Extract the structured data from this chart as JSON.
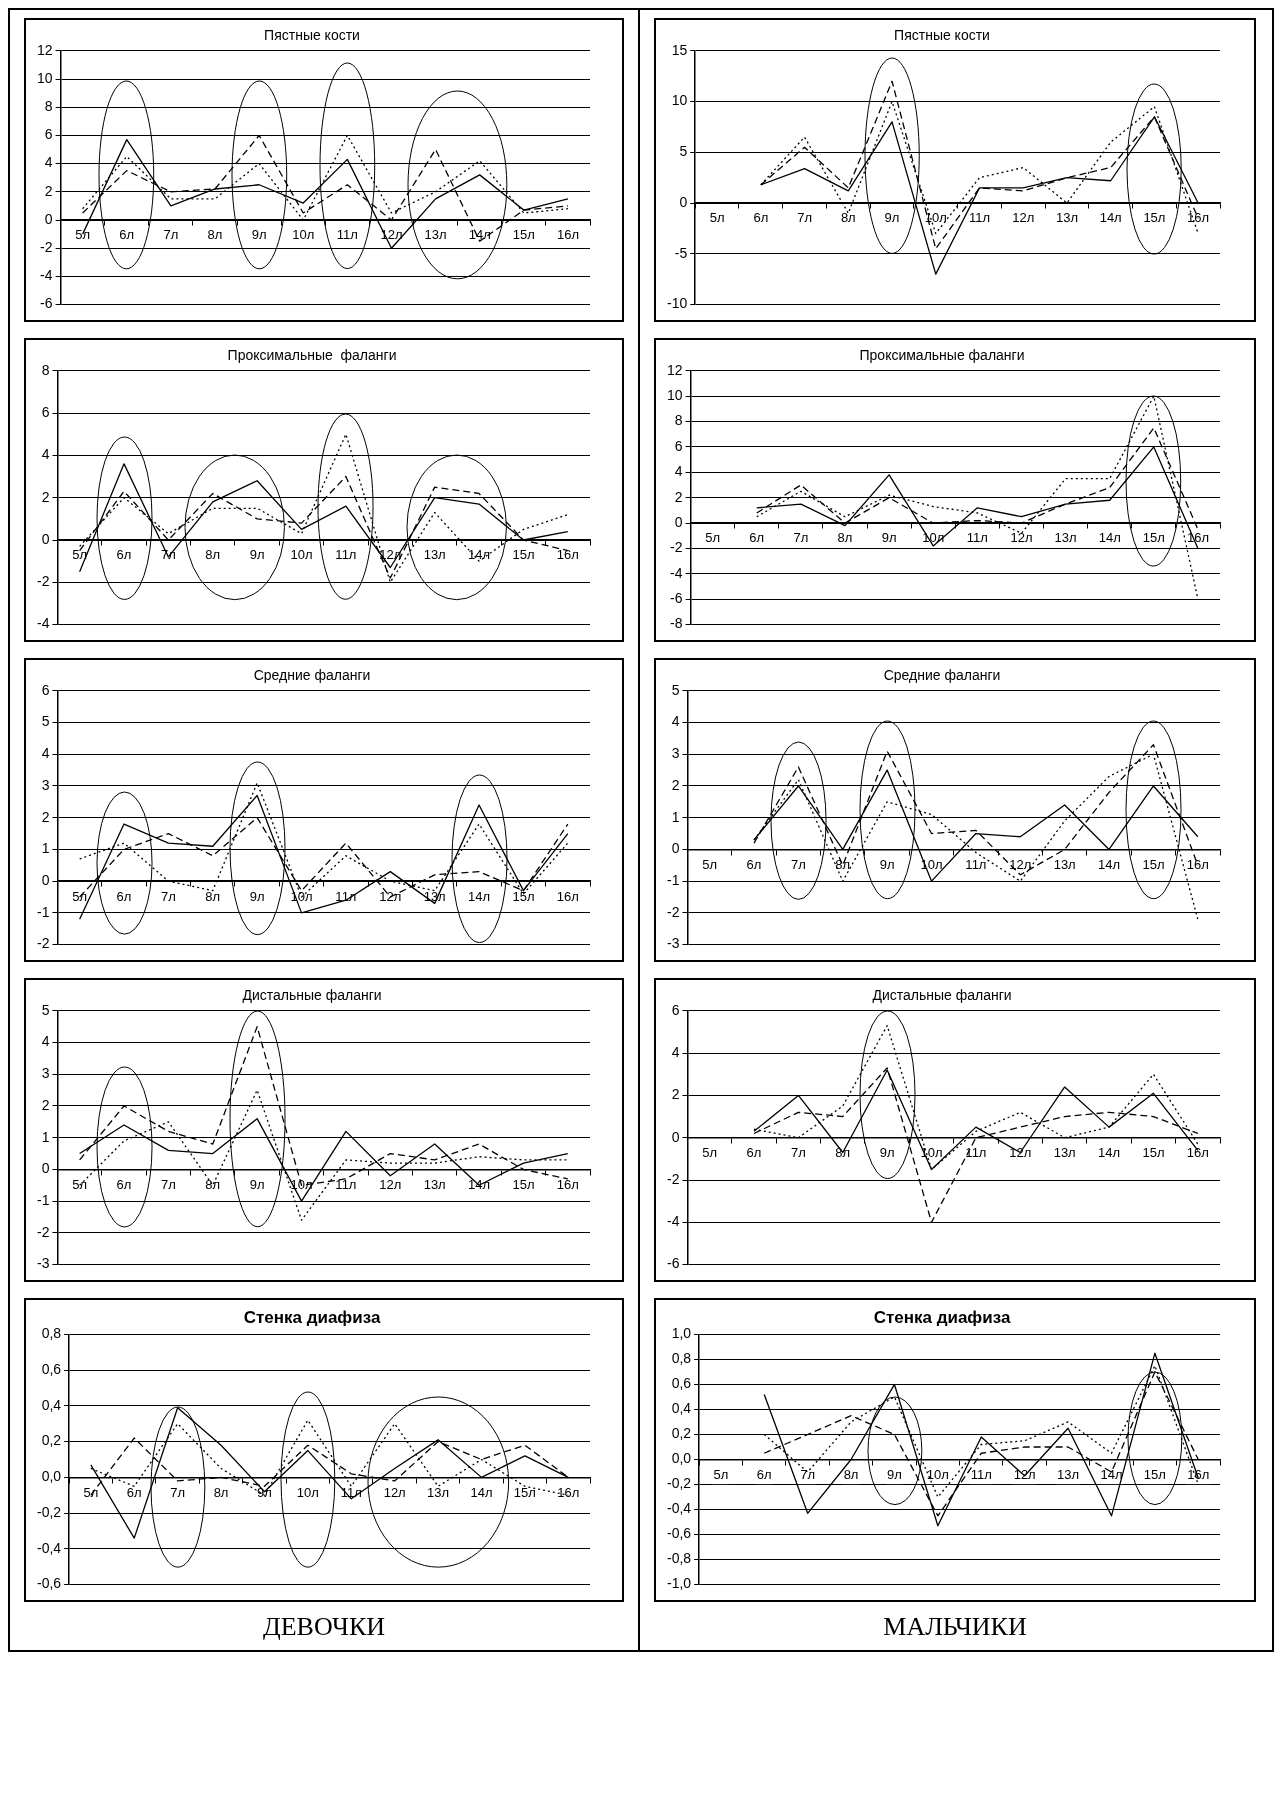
{
  "chart_data": [
    {
      "type": "line",
      "title": "Пястные кости",
      "categories": [
        "5л",
        "6л",
        "7л",
        "8л",
        "9л",
        "10л",
        "11л",
        "12л",
        "13л",
        "14л",
        "15л",
        "16л"
      ],
      "ylim": [
        -6,
        12
      ],
      "yticks": [
        -6,
        -4,
        -2,
        0,
        2,
        4,
        6,
        8,
        10,
        12
      ],
      "grid": "y",
      "marker": "none",
      "series": [
        {
          "color": "#000000",
          "line_style": "solid",
          "values": [
            -1,
            5.7,
            1,
            2.2,
            2.5,
            1.2,
            4.3,
            -2,
            1.5,
            3.2,
            0.7,
            1.5
          ]
        },
        {
          "color": "#000000",
          "line_style": "dashed",
          "values": [
            0.5,
            3.5,
            2,
            2.2,
            6,
            0.5,
            2.5,
            0,
            5,
            -1.5,
            0.7,
            1
          ]
        },
        {
          "color": "#000000",
          "line_style": "dotted",
          "values": [
            0.8,
            4.5,
            1.5,
            1.5,
            4,
            0,
            6,
            0.5,
            2,
            4.2,
            0.5,
            0.8
          ]
        }
      ]
    },
    {
      "type": "line",
      "title": "Пястные кости",
      "categories": [
        "5л",
        "6л",
        "7л",
        "8л",
        "9л",
        "10л",
        "11л",
        "12л",
        "13л",
        "14л",
        "15л",
        "16л"
      ],
      "ylim": [
        -10,
        15
      ],
      "yticks": [
        -10,
        -5,
        0,
        5,
        10,
        15
      ],
      "grid": "y",
      "marker": "none",
      "series": [
        {
          "color": "#000000",
          "line_style": "solid",
          "values": [
            null,
            1.8,
            3.4,
            1.2,
            8,
            -7,
            1.5,
            1.5,
            2.5,
            2.2,
            8.5,
            0
          ]
        },
        {
          "color": "#000000",
          "line_style": "dashed",
          "values": [
            null,
            1.8,
            5.5,
            1.5,
            12,
            -4.5,
            1.5,
            1.2,
            2.5,
            3.5,
            8.5,
            -1.5
          ]
        },
        {
          "color": "#000000",
          "line_style": "dotted",
          "values": [
            null,
            1.8,
            6.5,
            -1,
            10,
            -3,
            2.5,
            3.5,
            0,
            6,
            9.5,
            -3
          ]
        }
      ]
    },
    {
      "type": "line",
      "title": "Проксимальные  фаланги",
      "categories": [
        "5л",
        "6л",
        "7л",
        "8л",
        "9л",
        "10л",
        "11л",
        "12л",
        "13л",
        "14л",
        "15л",
        "16л"
      ],
      "ylim": [
        -4,
        8
      ],
      "yticks": [
        -4,
        -2,
        0,
        2,
        4,
        6,
        8
      ],
      "grid": "y",
      "marker": "none",
      "series": [
        {
          "color": "#000000",
          "line_style": "solid",
          "values": [
            -1.5,
            3.6,
            -0.8,
            1.8,
            2.8,
            0.5,
            1.6,
            -1.3,
            2,
            1.7,
            0,
            0.4
          ]
        },
        {
          "color": "#000000",
          "line_style": "dashed",
          "values": [
            -0.5,
            2.3,
            0,
            2.2,
            1,
            0.8,
            3,
            -1.8,
            2.5,
            2.2,
            0,
            -0.5
          ]
        },
        {
          "color": "#000000",
          "line_style": "dotted",
          "values": [
            -0.3,
            2,
            0.3,
            1.5,
            1.5,
            0.3,
            5,
            -2,
            1.3,
            -1,
            0.5,
            1.2
          ]
        }
      ]
    },
    {
      "type": "line",
      "title": "Проксимальные фаланги",
      "categories": [
        "5л",
        "6л",
        "7л",
        "8л",
        "9л",
        "10л",
        "11л",
        "12л",
        "13л",
        "14л",
        "15л",
        "16л"
      ],
      "ylim": [
        -8,
        12
      ],
      "yticks": [
        -8,
        -6,
        -4,
        -2,
        0,
        2,
        4,
        6,
        8,
        10,
        12
      ],
      "grid": "y",
      "marker": "none",
      "series": [
        {
          "color": "#000000",
          "line_style": "solid",
          "values": [
            null,
            1.2,
            1.5,
            -0.2,
            3.8,
            -1.8,
            1.2,
            0.5,
            1.5,
            1.8,
            6,
            -2
          ]
        },
        {
          "color": "#000000",
          "line_style": "dashed",
          "values": [
            null,
            0.8,
            3,
            0,
            2,
            0,
            0.2,
            0,
            1.5,
            2.8,
            7.5,
            -0.5
          ]
        },
        {
          "color": "#000000",
          "line_style": "dotted",
          "values": [
            null,
            0.5,
            2.5,
            0.5,
            2.2,
            1.3,
            0.8,
            -0.8,
            3.5,
            3.5,
            10,
            -6
          ]
        }
      ]
    },
    {
      "type": "line",
      "title": "Средние фаланги",
      "categories": [
        "5л",
        "6л",
        "7л",
        "8л",
        "9л",
        "10л",
        "11л",
        "12л",
        "13л",
        "14л",
        "15л",
        "16л"
      ],
      "ylim": [
        -2,
        6
      ],
      "yticks": [
        -2,
        -1,
        0,
        1,
        2,
        3,
        4,
        5,
        6
      ],
      "grid": "y",
      "marker": "none",
      "series": [
        {
          "color": "#000000",
          "line_style": "solid",
          "values": [
            -1.2,
            1.8,
            1.2,
            1.1,
            2.7,
            -1,
            -0.6,
            0.3,
            -0.7,
            2.4,
            -0.3,
            1.5
          ]
        },
        {
          "color": "#000000",
          "line_style": "dashed",
          "values": [
            -0.5,
            1,
            1.5,
            0.8,
            2,
            -0.3,
            1.2,
            -0.5,
            0.2,
            0.3,
            -0.3,
            1.8
          ]
        },
        {
          "color": "#000000",
          "line_style": "dotted",
          "values": [
            0.7,
            1.2,
            0,
            -0.3,
            3.1,
            -0.5,
            0.8,
            0,
            -0.3,
            1.8,
            -0.4,
            1.2
          ]
        }
      ]
    },
    {
      "type": "line",
      "title": "Средние фаланги",
      "categories": [
        "5л",
        "6л",
        "7л",
        "8л",
        "9л",
        "10л",
        "11л",
        "12л",
        "13л",
        "14л",
        "15л",
        "16л"
      ],
      "ylim": [
        -3,
        5
      ],
      "yticks": [
        -3,
        -2,
        -1,
        0,
        1,
        2,
        3,
        4,
        5
      ],
      "grid": "y",
      "marker": "none",
      "series": [
        {
          "color": "#000000",
          "line_style": "solid",
          "values": [
            null,
            0.3,
            2,
            0,
            2.5,
            -1,
            0.5,
            0.4,
            1.4,
            0,
            2,
            0.4
          ]
        },
        {
          "color": "#000000",
          "line_style": "dashed",
          "values": [
            null,
            0.2,
            2.6,
            -0.5,
            3.1,
            0.5,
            0.6,
            -0.8,
            0,
            1.8,
            3.3,
            -0.5
          ]
        },
        {
          "color": "#000000",
          "line_style": "dotted",
          "values": [
            null,
            0.3,
            2.2,
            -1,
            1.5,
            1.1,
            -0.1,
            -1,
            0.9,
            2.3,
            3,
            -2.2
          ]
        }
      ]
    },
    {
      "type": "line",
      "title": "Дистальные фаланги",
      "categories": [
        "5л",
        "6л",
        "7л",
        "8л",
        "9л",
        "10л",
        "11л",
        "12л",
        "13л",
        "14л",
        "15л",
        "16л"
      ],
      "ylim": [
        -3,
        5
      ],
      "yticks": [
        -3,
        -2,
        -1,
        0,
        1,
        2,
        3,
        4,
        5
      ],
      "grid": "y",
      "marker": "none",
      "series": [
        {
          "color": "#000000",
          "line_style": "solid",
          "values": [
            0.5,
            1.4,
            0.6,
            0.5,
            1.6,
            -1,
            1.2,
            -0.2,
            0.8,
            -0.5,
            0.2,
            0.5
          ]
        },
        {
          "color": "#000000",
          "line_style": "dashed",
          "values": [
            0.3,
            2,
            1.2,
            0.8,
            4.5,
            -0.5,
            -0.3,
            0.5,
            0.3,
            0.8,
            0,
            -0.3
          ]
        },
        {
          "color": "#000000",
          "line_style": "dotted",
          "values": [
            -0.5,
            0.9,
            1.5,
            -0.5,
            2.5,
            -1.6,
            0.3,
            0.2,
            0.2,
            0.4,
            0.3,
            0.3
          ]
        }
      ]
    },
    {
      "type": "line",
      "title": "Дистальные фаланги",
      "categories": [
        "5л",
        "6л",
        "7л",
        "8л",
        "9л",
        "10л",
        "11л",
        "12л",
        "13л",
        "14л",
        "15л",
        "16л"
      ],
      "ylim": [
        -6,
        6
      ],
      "yticks": [
        -6,
        -4,
        -2,
        0,
        2,
        4,
        6
      ],
      "grid": "y",
      "marker": "none",
      "series": [
        {
          "color": "#000000",
          "line_style": "solid",
          "values": [
            null,
            0.3,
            2,
            -0.7,
            3.2,
            -1.5,
            0.5,
            -0.7,
            2.4,
            0.5,
            2.1,
            -0.6
          ]
        },
        {
          "color": "#000000",
          "line_style": "dashed",
          "values": [
            null,
            0.2,
            1.2,
            1,
            3.3,
            -4,
            0,
            0.5,
            1,
            1.2,
            1,
            0.2
          ]
        },
        {
          "color": "#000000",
          "line_style": "dotted",
          "values": [
            null,
            0.4,
            0,
            1.5,
            5.3,
            -1.5,
            0.3,
            1.2,
            0,
            0.5,
            3,
            -0.3
          ]
        }
      ]
    },
    {
      "type": "line",
      "title": "Стенка диафиза",
      "categories": [
        "5л",
        "6л",
        "7л",
        "8л",
        "9л",
        "10л",
        "11л",
        "12л",
        "13л",
        "14л",
        "15л",
        "16л"
      ],
      "ylim": [
        -0.6,
        0.8
      ],
      "yticks": [
        {
          "value": -0.6,
          "label": "-0,6"
        },
        {
          "value": -0.4,
          "label": "-0,4"
        },
        {
          "value": -0.2,
          "label": "-0,2"
        },
        {
          "value": 0,
          "label": "0,0"
        },
        {
          "value": 0.2,
          "label": "0,2"
        },
        {
          "value": 0.4,
          "label": "0,4"
        },
        {
          "value": 0.6,
          "label": "0,6"
        },
        {
          "value": 0.8,
          "label": "0,8"
        }
      ],
      "grid": "y",
      "marker": "none",
      "annotations": [
        "ДЕВОЧКИ"
      ],
      "series": [
        {
          "color": "#000000",
          "line_style": "solid",
          "values": [
            0.07,
            -0.34,
            0.39,
            0.18,
            -0.08,
            0.15,
            -0.12,
            0.05,
            0.21,
            0,
            0.12,
            0
          ]
        },
        {
          "color": "#000000",
          "line_style": "dashed",
          "values": [
            -0.1,
            0.22,
            -0.02,
            0,
            -0.05,
            0.18,
            0.02,
            -0.02,
            0.2,
            0.1,
            0.18,
            0
          ]
        },
        {
          "color": "#000000",
          "line_style": "dotted",
          "values": [
            0.05,
            -0.05,
            0.3,
            0.05,
            -0.1,
            0.32,
            -0.05,
            0.3,
            -0.05,
            0.1,
            -0.05,
            -0.1
          ]
        }
      ]
    },
    {
      "type": "line",
      "title": "Стенка диафиза",
      "categories": [
        "5л",
        "6л",
        "7л",
        "8л",
        "9л",
        "10л",
        "11л",
        "12л",
        "13л",
        "14л",
        "15л",
        "16л"
      ],
      "ylim": [
        -1,
        1
      ],
      "yticks": [
        {
          "value": -1,
          "label": "-1,0"
        },
        {
          "value": -0.8,
          "label": "-0,8"
        },
        {
          "value": -0.6,
          "label": "-0,6"
        },
        {
          "value": -0.4,
          "label": "-0,4"
        },
        {
          "value": -0.2,
          "label": "-0,2"
        },
        {
          "value": 0,
          "label": "0,0"
        },
        {
          "value": 0.2,
          "label": "0,2"
        },
        {
          "value": 0.4,
          "label": "0,4"
        },
        {
          "value": 0.6,
          "label": "0,6"
        },
        {
          "value": 0.8,
          "label": "0,8"
        },
        {
          "value": 1,
          "label": "1,0"
        }
      ],
      "grid": "y",
      "marker": "none",
      "annotations": [
        "МАЛЬЧИКИ"
      ],
      "series": [
        {
          "color": "#000000",
          "line_style": "solid",
          "values": [
            null,
            0.52,
            -0.43,
            0,
            0.6,
            -0.53,
            0.18,
            -0.13,
            0.25,
            -0.45,
            0.85,
            -0.15
          ]
        },
        {
          "color": "#000000",
          "line_style": "dashed",
          "values": [
            null,
            0.05,
            0.2,
            0.35,
            0.2,
            -0.45,
            0.05,
            0.1,
            0.1,
            -0.1,
            0.7,
            0
          ]
        },
        {
          "color": "#000000",
          "line_style": "dotted",
          "values": [
            null,
            0.2,
            -0.1,
            0.3,
            0.5,
            -0.3,
            0.12,
            0.15,
            0.3,
            0.05,
            0.75,
            -0.2
          ]
        }
      ]
    }
  ]
}
